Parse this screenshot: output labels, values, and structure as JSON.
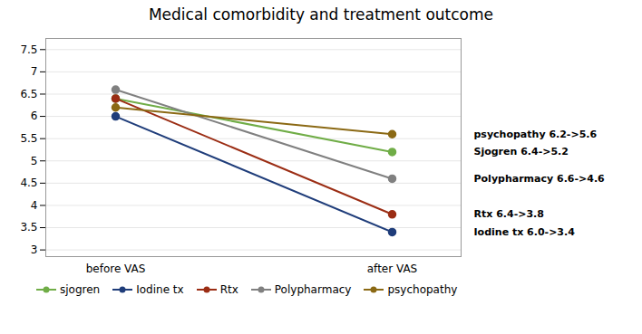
{
  "chart_data": {
    "type": "line",
    "title": "Medical comorbidity and treatment outcome",
    "categories": [
      "before VAS",
      "after VAS"
    ],
    "series": [
      {
        "name": "sjogren",
        "color": "#70ad47",
        "values": [
          6.4,
          5.2
        ]
      },
      {
        "name": "Iodine tx",
        "color": "#1f3d7a",
        "values": [
          6.0,
          3.4
        ]
      },
      {
        "name": "Rtx",
        "color": "#9b2d14",
        "values": [
          6.4,
          3.8
        ]
      },
      {
        "name": "Polypharmacy",
        "color": "#808080",
        "values": [
          6.6,
          4.6
        ]
      },
      {
        "name": "psychopathy",
        "color": "#8b6914",
        "values": [
          6.2,
          5.6
        ]
      }
    ],
    "annotations": [
      {
        "text": "psychopathy 6.2->5.6",
        "x": "after VAS",
        "y": 5.6
      },
      {
        "text": "Sjogren 6.4->5.2",
        "x": "after VAS",
        "y": 5.2
      },
      {
        "text": "Polypharmacy 6.6->4.6",
        "x": "after VAS",
        "y": 4.6
      },
      {
        "text": "Rtx 6.4->3.8",
        "x": "after VAS",
        "y": 3.8
      },
      {
        "text": "Iodine tx 6.0->3.4",
        "x": "after VAS",
        "y": 3.4
      }
    ],
    "ylim": [
      2.85,
      7.75
    ],
    "yticks": [
      3,
      3.5,
      4,
      4.5,
      5,
      5.5,
      6,
      6.5,
      7,
      7.5
    ],
    "grid": true,
    "legend": "bottom",
    "marker": "circle"
  }
}
